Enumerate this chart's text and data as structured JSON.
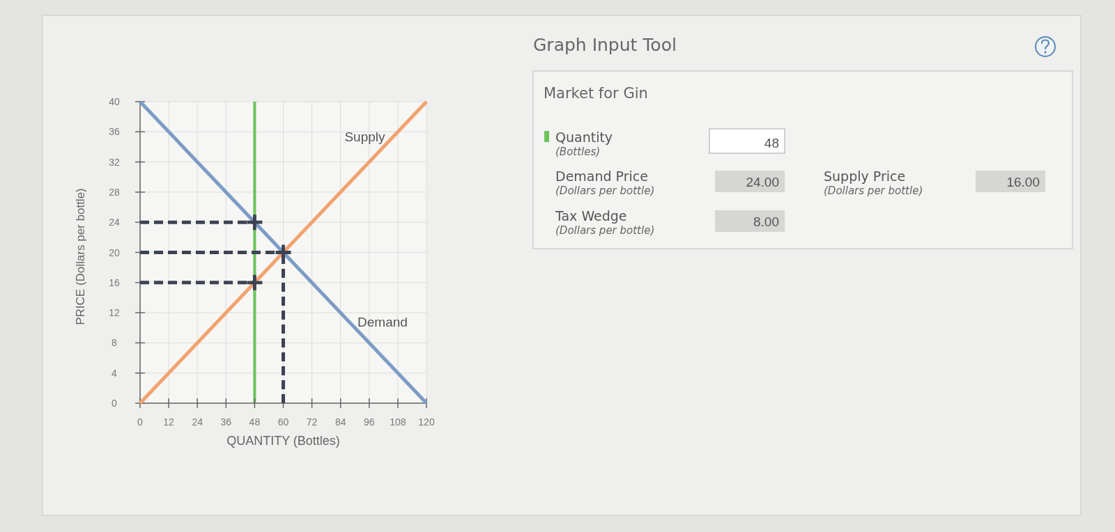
{
  "chart_data": [
    {
      "type": "line",
      "xlabel": "QUANTITY (Bottles)",
      "ylabel": "PRICE (Dollars per bottle)",
      "xlim": [
        0,
        120
      ],
      "xticks": [
        0,
        12,
        24,
        36,
        48,
        60,
        72,
        84,
        96,
        108,
        120
      ],
      "ylim": [
        0,
        40
      ],
      "yticks": [
        0,
        4,
        8,
        12,
        16,
        20,
        24,
        28,
        32,
        36,
        40
      ],
      "grid": true,
      "series": [
        {
          "name": "Demand",
          "color": "#7b9cc4",
          "x": [
            0,
            120
          ],
          "values": [
            40,
            0
          ]
        },
        {
          "name": "Supply",
          "color": "#f2a26e",
          "x": [
            0,
            120
          ],
          "values": [
            0,
            40
          ]
        },
        {
          "color": "#3c4352",
          "x": [
            0,
            48
          ],
          "values": [
            24,
            24
          ],
          "line_style": "dashed"
        },
        {
          "color": "#3c4352",
          "x": [
            0,
            60
          ],
          "values": [
            20,
            20
          ],
          "line_style": "dashed"
        },
        {
          "color": "#3c4352",
          "x": [
            0,
            48
          ],
          "values": [
            16,
            16
          ],
          "line_style": "dashed"
        },
        {
          "color": "#3c4352",
          "x": [
            60,
            60
          ],
          "values": [
            0,
            20
          ],
          "line_style": "dashed"
        },
        {
          "type": "scatter",
          "color": "#3c4352",
          "x": [
            48,
            60,
            48
          ],
          "values": [
            24,
            20,
            16
          ],
          "marker": "cross"
        }
      ],
      "ref_lines": [
        {
          "axis": "x",
          "value": 48,
          "color": "#6cc35a"
        }
      ]
    },
    {
      "type": "other",
      "title": "Graph Input Tool",
      "subtitle": "Market for Gin",
      "annotations": [
        "Quantity",
        "(Bottles)",
        "48",
        "Demand Price",
        "(Dollars per bottle)",
        "24.00",
        "Supply Price",
        "(Dollars per bottle)",
        "16.00",
        "Tax Wedge",
        "(Dollars per bottle)",
        "8.00"
      ]
    }
  ]
}
